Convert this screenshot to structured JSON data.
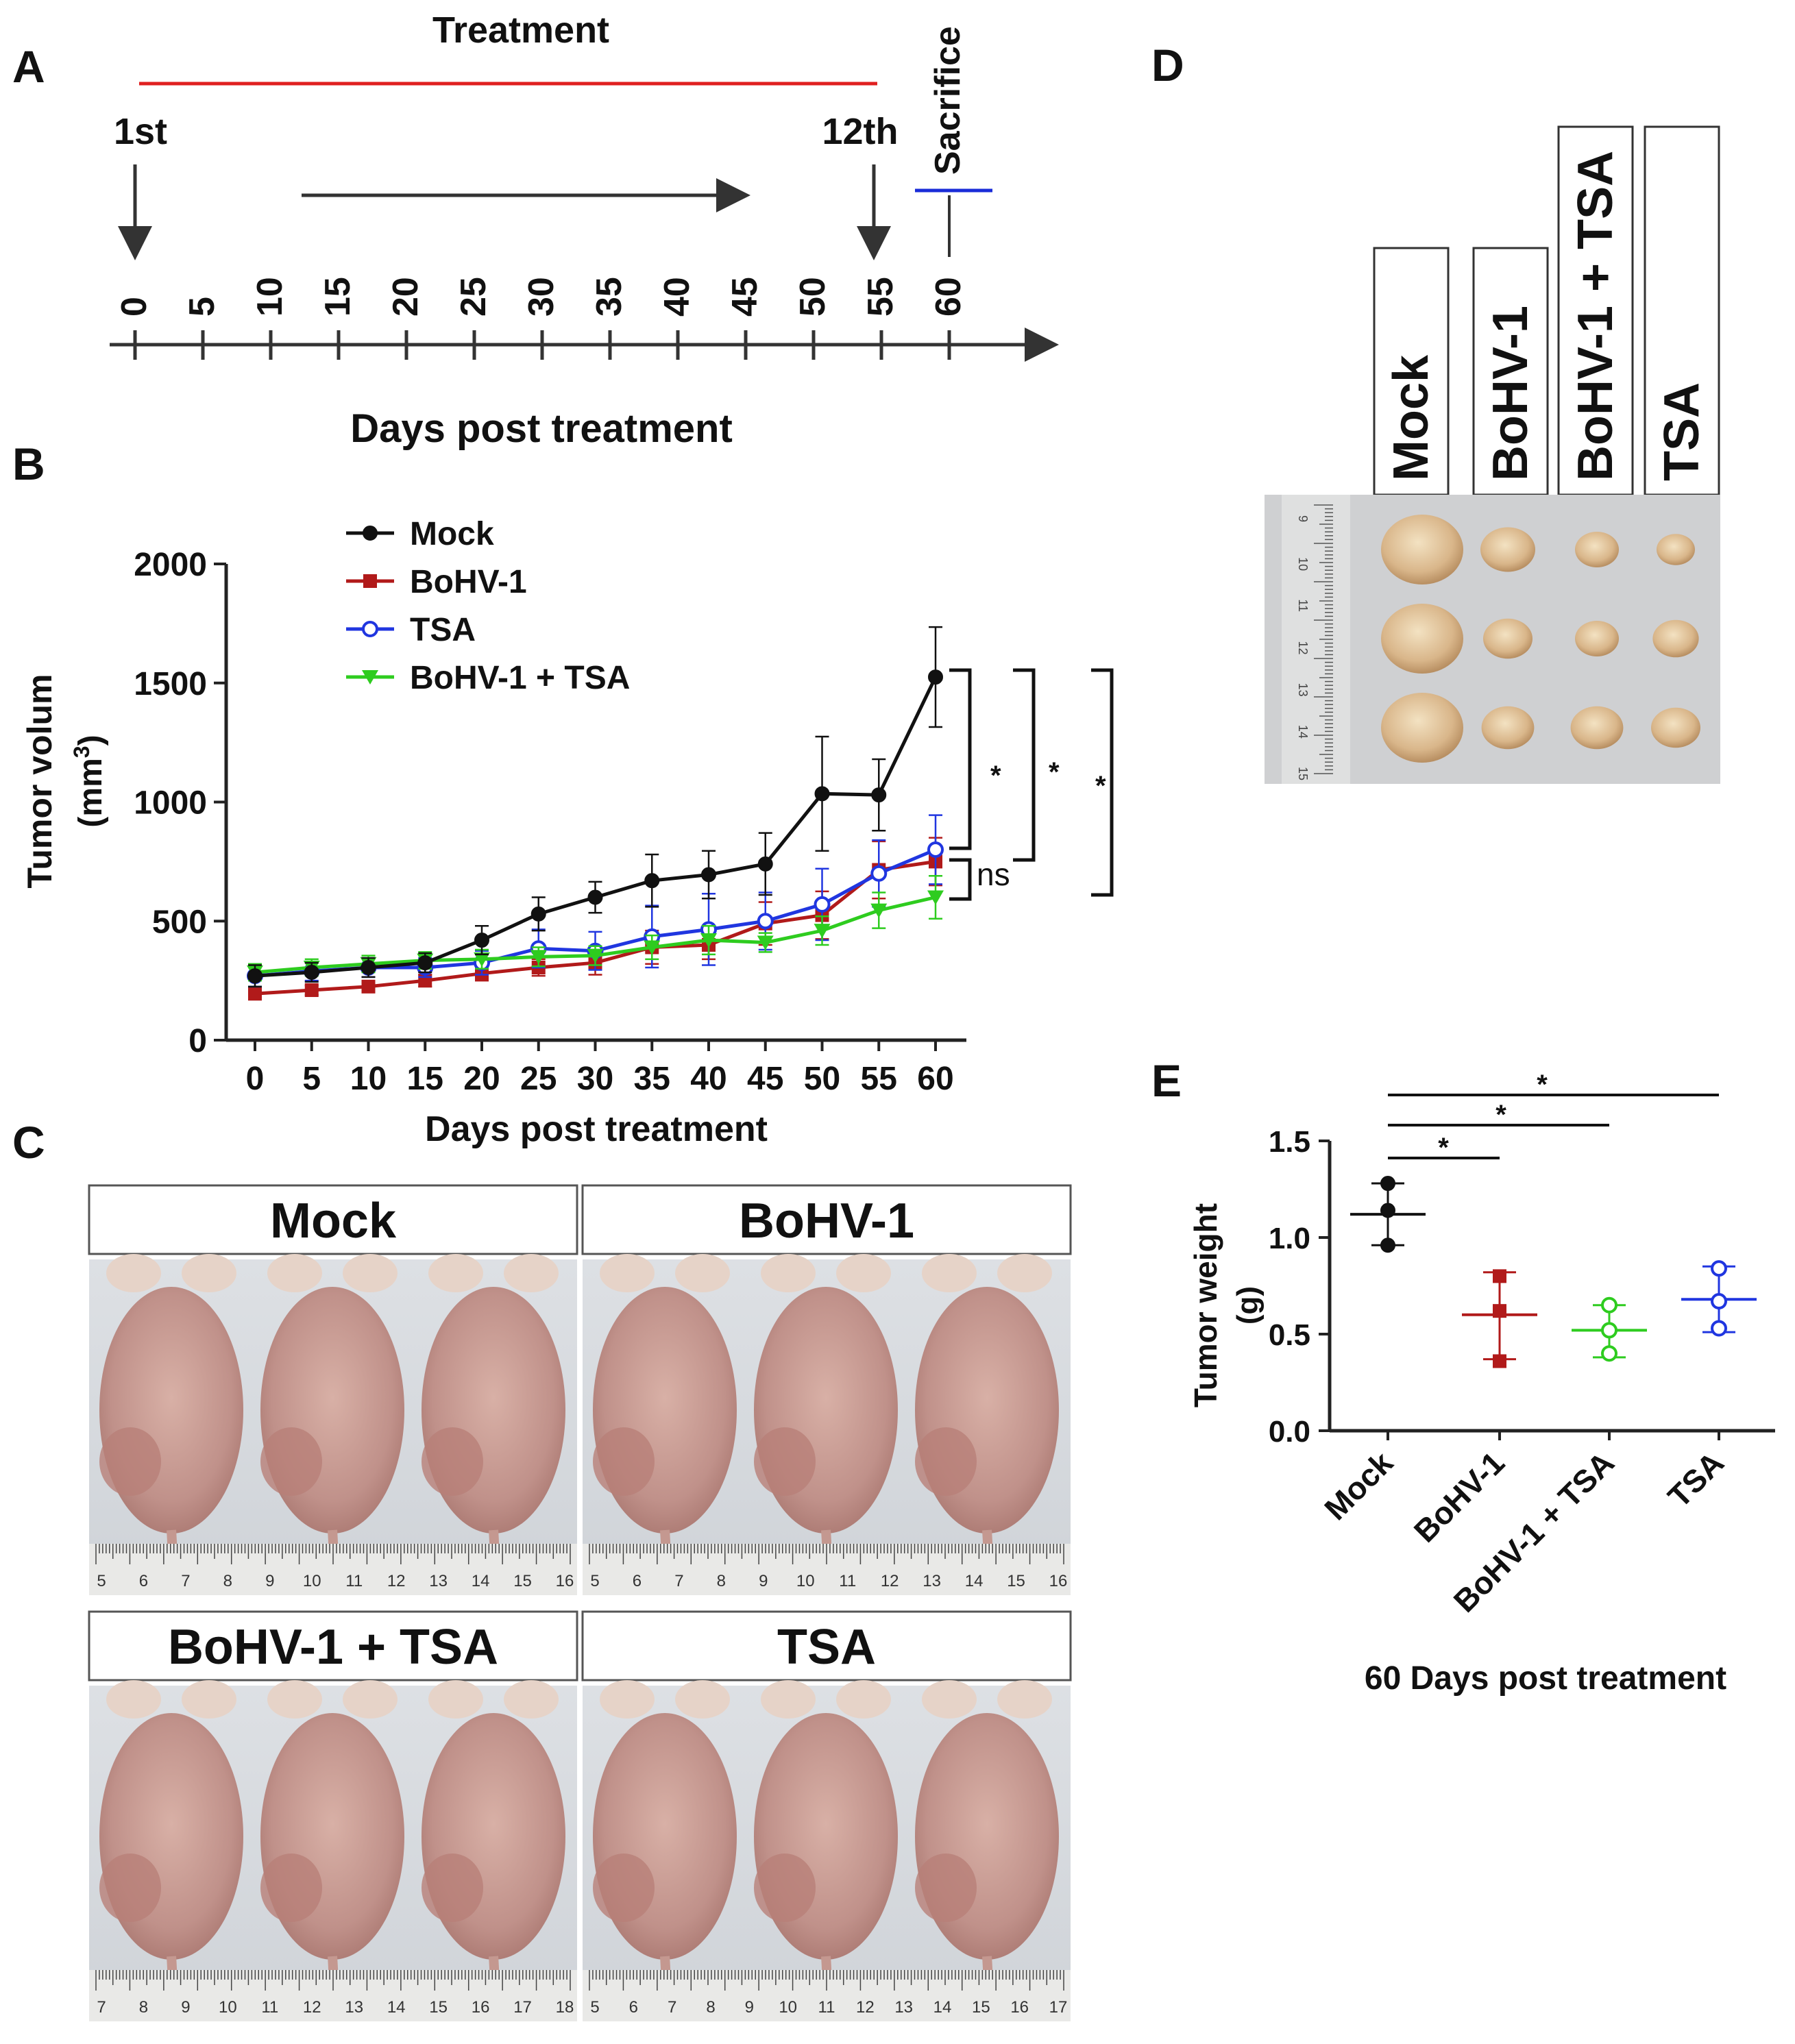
{
  "panels": {
    "a": "A",
    "b": "B",
    "c": "C",
    "d": "D",
    "e": "E"
  },
  "timeline": {
    "treatment_label": "Treatment",
    "first_label": "1st",
    "last_label": "12th",
    "sacrifice_label": "Sacrifice",
    "ticks": [
      "0",
      "5",
      "10",
      "15",
      "20",
      "25",
      "30",
      "35",
      "40",
      "45",
      "50",
      "55",
      "60"
    ],
    "xlabel": "Days post treatment",
    "colors": {
      "treatment": "#e02020",
      "sacrifice": "#1a2cd8"
    }
  },
  "photos": {
    "mock": "Mock",
    "bohv1": "BoHV-1",
    "combo": "BoHV-1 + TSA",
    "tsa": "TSA",
    "ruler_c1": [
      "5",
      "6",
      "7",
      "8",
      "9",
      "10",
      "11",
      "12",
      "13",
      "14",
      "15",
      "16"
    ],
    "ruler_c2": [
      "5",
      "6",
      "7",
      "8",
      "9",
      "10",
      "11",
      "12",
      "13",
      "14",
      "15",
      "16"
    ],
    "ruler_c3": [
      "7",
      "8",
      "9",
      "10",
      "11",
      "12",
      "13",
      "14",
      "15",
      "16",
      "17",
      "18"
    ],
    "ruler_c4": [
      "5",
      "6",
      "7",
      "8",
      "9",
      "10",
      "11",
      "12",
      "13",
      "14",
      "15",
      "16",
      "17"
    ],
    "ruler_d": [
      "9",
      "10",
      "11",
      "12",
      "13",
      "14",
      "15"
    ]
  },
  "chart_data": [
    {
      "type": "line",
      "xlabel": "Days post treatment",
      "ylabel": "Tumor volum",
      "ylabel_unit": "(mm",
      "ylabel_unit_sup": "3",
      "ylabel_unit_close": ")",
      "x": [
        0,
        5,
        10,
        15,
        20,
        25,
        30,
        35,
        40,
        45,
        50,
        55,
        60
      ],
      "xlim": [
        0,
        60
      ],
      "ylim": [
        0,
        2000
      ],
      "yticks": [
        0,
        500,
        1000,
        1500,
        2000
      ],
      "legend_position": "top",
      "series": [
        {
          "name": "Mock",
          "color": "#111111",
          "marker": "circle-filled",
          "values": [
            270,
            285,
            305,
            325,
            420,
            530,
            600,
            670,
            695,
            740,
            1035,
            1030,
            1525
          ],
          "errors": [
            45,
            40,
            40,
            40,
            60,
            70,
            65,
            110,
            100,
            130,
            240,
            150,
            210
          ]
        },
        {
          "name": "BoHV-1",
          "color": "#b11a1a",
          "marker": "square",
          "values": [
            195,
            210,
            225,
            250,
            280,
            305,
            325,
            390,
            400,
            490,
            525,
            715,
            750
          ],
          "errors": [
            20,
            20,
            20,
            25,
            30,
            35,
            50,
            70,
            60,
            90,
            100,
            120,
            100
          ]
        },
        {
          "name": "TSA",
          "color": "#2036e0",
          "marker": "circle-open",
          "values": [
            270,
            290,
            305,
            305,
            325,
            385,
            375,
            435,
            465,
            500,
            570,
            700,
            800
          ],
          "errors": [
            45,
            40,
            40,
            40,
            50,
            80,
            80,
            130,
            150,
            120,
            150,
            140,
            145
          ]
        },
        {
          "name": "BoHV-1 + TSA",
          "color": "#2ecc1f",
          "marker": "triangle-down",
          "values": [
            285,
            305,
            320,
            335,
            340,
            350,
            355,
            390,
            420,
            410,
            460,
            545,
            600
          ],
          "errors": [
            35,
            35,
            35,
            35,
            40,
            40,
            40,
            50,
            60,
            40,
            60,
            75,
            90
          ]
        }
      ],
      "annotations": {
        "sig1": "*",
        "sig2": "*",
        "sig3": "*",
        "ns": "ns"
      }
    },
    {
      "type": "scatter",
      "xlabel": "60 Days post treatment",
      "ylabel": "Tumor weight",
      "ylabel_unit": "(g)",
      "categories": [
        "Mock",
        "BoHV-1",
        "BoHV-1 + TSA",
        "TSA"
      ],
      "ylim": [
        0,
        1.5
      ],
      "yticks": [
        "0.0",
        "0.5",
        "1.0",
        "1.5"
      ],
      "series": [
        {
          "category": "Mock",
          "color": "#111111",
          "marker": "circle-filled",
          "points": [
            1.28,
            1.14,
            0.96
          ],
          "mean": 1.12,
          "range": [
            0.96,
            1.28
          ]
        },
        {
          "category": "BoHV-1",
          "color": "#b11a1a",
          "marker": "square",
          "points": [
            0.8,
            0.62,
            0.36
          ],
          "mean": 0.6,
          "range": [
            0.37,
            0.82
          ]
        },
        {
          "category": "BoHV-1 + TSA",
          "color": "#2ecc1f",
          "marker": "circle-open",
          "points": [
            0.65,
            0.52,
            0.4
          ],
          "mean": 0.52,
          "range": [
            0.38,
            0.65
          ]
        },
        {
          "category": "TSA",
          "color": "#2036e0",
          "marker": "circle-open",
          "points": [
            0.84,
            0.67,
            0.53
          ],
          "mean": 0.68,
          "range": [
            0.51,
            0.85
          ]
        }
      ],
      "annotations": {
        "sig1": "*",
        "sig2": "*",
        "sig3": "*"
      }
    }
  ]
}
